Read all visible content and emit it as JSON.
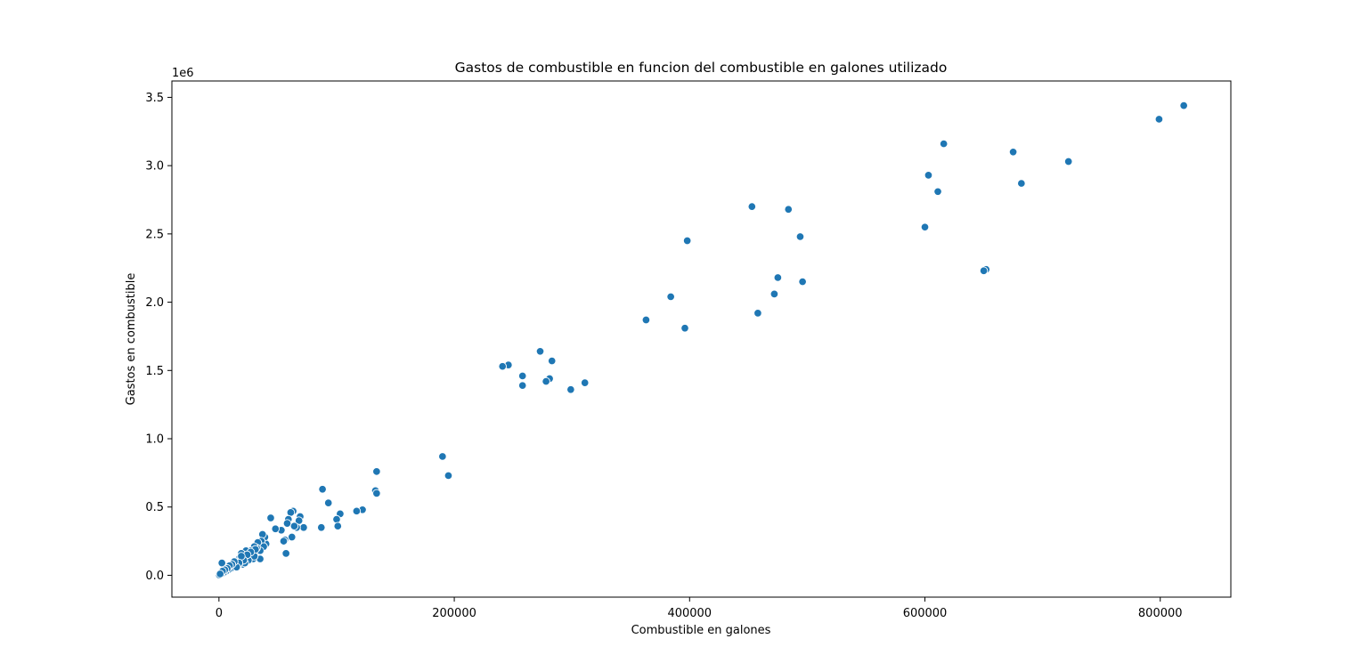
{
  "chart_data": {
    "type": "scatter",
    "title": "Gastos de combustible en funcion del combustible en galones utilizado",
    "xlabel": "Combustible en galones",
    "ylabel": "Gastos en combustible",
    "y_offset_label": "1e6",
    "xlim": [
      -40000,
      860000
    ],
    "ylim": [
      -0.16,
      3.62
    ],
    "x_ticks": [
      0,
      200000,
      400000,
      600000,
      800000
    ],
    "x_tick_labels": [
      "0",
      "200000",
      "400000",
      "600000",
      "800000"
    ],
    "y_ticks": [
      0.0,
      0.5,
      1.0,
      1.5,
      2.0,
      2.5,
      3.0,
      3.5
    ],
    "y_tick_labels": [
      "0.0",
      "0.5",
      "1.0",
      "1.5",
      "2.0",
      "2.5",
      "3.0",
      "3.5"
    ],
    "grid": false,
    "point_color": "#1f77b4",
    "series": [
      {
        "x": [
          820000,
          799000,
          722000,
          682000,
          675000,
          616000,
          603000,
          611000,
          600000,
          652000,
          650000,
          453000,
          484000,
          494000,
          398000,
          496000,
          475000,
          472000,
          384000,
          458000,
          396000,
          363000,
          273000,
          283000,
          246000,
          241000,
          258000,
          258000,
          281000,
          278000,
          311000,
          299000,
          190000,
          195000,
          134000,
          133000,
          134000,
          88000,
          93000,
          122000,
          117000,
          103000,
          100000,
          101000,
          87000,
          72000,
          69000,
          68000,
          63000,
          61000,
          59000,
          58000,
          66000,
          64000,
          62000,
          56000,
          55000,
          57000,
          53000,
          48000,
          44000,
          40000,
          39000,
          37000,
          36000,
          34000,
          38000,
          35000,
          33000,
          32000,
          30000,
          29000,
          28000,
          27000,
          26000,
          25000,
          24000,
          23000,
          22000,
          21000,
          20000,
          19000,
          18000,
          17000,
          16000,
          15000,
          14000,
          13000,
          12000,
          11000,
          10000,
          9000,
          8000,
          7000,
          6000,
          5000,
          4000,
          3000,
          2500,
          2000,
          1500,
          1000,
          500,
          300,
          35000,
          30000,
          25000,
          22000,
          20000,
          18000,
          16000,
          14000,
          12000,
          10000,
          8000,
          6000,
          4000,
          2000,
          31000,
          27000,
          24000,
          21000,
          19000,
          17000,
          15000,
          13000,
          11000,
          9000,
          7000,
          5000,
          3000,
          1000
        ],
        "y": [
          3.44,
          3.34,
          3.03,
          2.87,
          3.1,
          3.16,
          2.93,
          2.81,
          2.55,
          2.24,
          2.23,
          2.7,
          2.68,
          2.48,
          2.45,
          2.15,
          2.18,
          2.06,
          2.04,
          1.92,
          1.81,
          1.87,
          1.64,
          1.57,
          1.54,
          1.53,
          1.46,
          1.39,
          1.44,
          1.42,
          1.41,
          1.36,
          0.87,
          0.73,
          0.76,
          0.62,
          0.6,
          0.63,
          0.53,
          0.48,
          0.47,
          0.45,
          0.41,
          0.36,
          0.35,
          0.35,
          0.43,
          0.4,
          0.47,
          0.46,
          0.41,
          0.38,
          0.35,
          0.36,
          0.28,
          0.26,
          0.25,
          0.16,
          0.33,
          0.34,
          0.42,
          0.23,
          0.28,
          0.3,
          0.25,
          0.22,
          0.21,
          0.18,
          0.24,
          0.2,
          0.21,
          0.12,
          0.16,
          0.18,
          0.14,
          0.15,
          0.12,
          0.18,
          0.1,
          0.13,
          0.08,
          0.16,
          0.11,
          0.12,
          0.07,
          0.1,
          0.09,
          0.06,
          0.08,
          0.07,
          0.05,
          0.06,
          0.05,
          0.04,
          0.04,
          0.03,
          0.03,
          0.02,
          0.09,
          0.02,
          0.01,
          0.01,
          0.005,
          0.002,
          0.12,
          0.14,
          0.11,
          0.09,
          0.13,
          0.1,
          0.08,
          0.07,
          0.06,
          0.05,
          0.04,
          0.03,
          0.02,
          0.01,
          0.19,
          0.17,
          0.15,
          0.11,
          0.14,
          0.09,
          0.06,
          0.1,
          0.08,
          0.07,
          0.05,
          0.04,
          0.03,
          0.01
        ]
      }
    ]
  }
}
